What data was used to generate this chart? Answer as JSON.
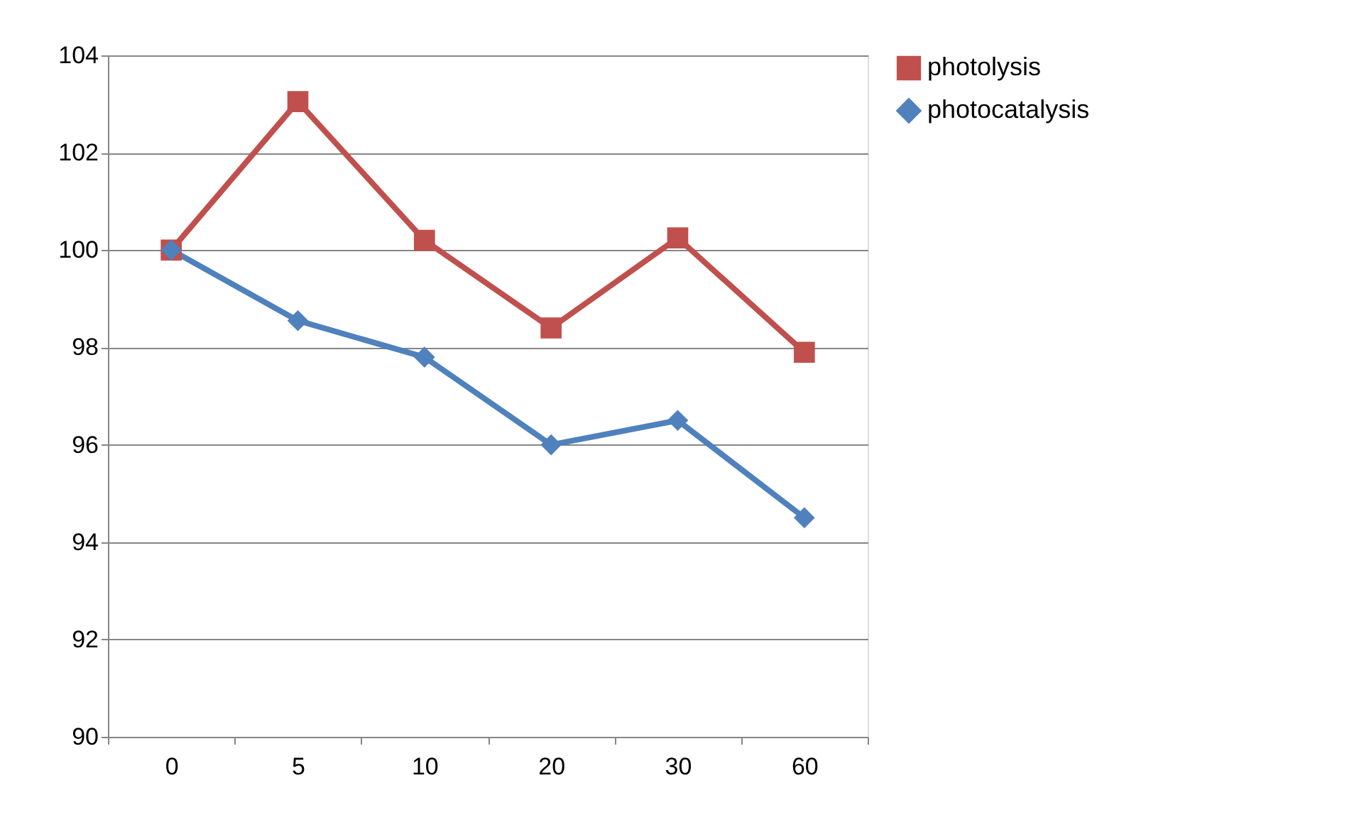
{
  "chart_data": {
    "type": "line",
    "categories": [
      "0",
      "5",
      "10",
      "20",
      "30",
      "60"
    ],
    "series": [
      {
        "name": "photolysis",
        "color": "#c0504d",
        "marker": "square",
        "values": [
          100,
          103.05,
          100.2,
          98.4,
          100.25,
          97.9
        ]
      },
      {
        "name": "photocatalysis",
        "color": "#4f81bd",
        "marker": "diamond",
        "values": [
          100,
          98.55,
          97.8,
          96.0,
          96.5,
          94.5
        ]
      }
    ],
    "ylim": [
      90,
      104
    ],
    "yticks": [
      90,
      92,
      94,
      96,
      98,
      100,
      102,
      104
    ],
    "grid": "y",
    "legend": "right",
    "line_style": "solid"
  }
}
